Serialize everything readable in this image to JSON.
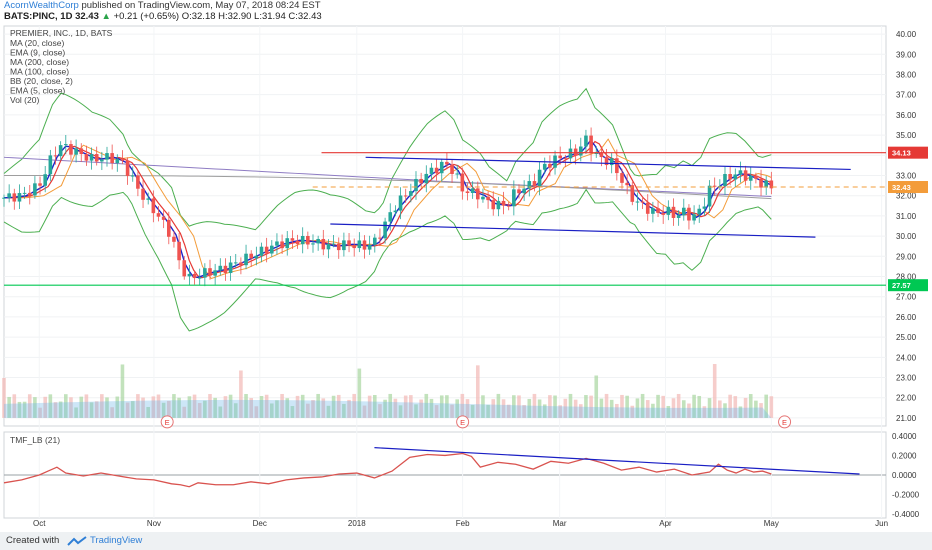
{
  "header": {
    "author": "AcornWealthCorp",
    "published": "published on TradingView.com, May 07, 2018 08:24 EST",
    "symbol": "BATS:PINC, 1D",
    "last": "32.43",
    "change_arrow": "▲",
    "change": "+0.21 (+0.65%)",
    "ohlc": "O:32.18 H:32.90 L:31.94 C:32.43"
  },
  "footer": {
    "created_with": "Created with",
    "brand": "TradingView",
    "logo_icon": "tradingview-logo-icon"
  },
  "colors": {
    "candle_up": "#26a69a",
    "candle_down": "#ef5350",
    "ma20": "#4caf50",
    "ema9": "#e53935",
    "ma200": "#8e7cc3",
    "ma100": "#9e9e9e",
    "bb": "#4caf50",
    "ema5": "#1e22c9",
    "resistance": "#e53935",
    "support": "#00c853",
    "channel": "#1a1fc4",
    "orange_guide": "#f39c3a",
    "tmf": "#d9534f",
    "vol_ma": "#6fb6e8",
    "vol_up": "#a8d5a0",
    "vol_down": "#f2b8b5"
  },
  "chart_data": [
    {
      "type": "candlestick",
      "title": "PREMIER, INC., 1D, BATS",
      "indicators": [
        "MA (20, close)",
        "EMA (9, close)",
        "MA (200, close)",
        "MA (100, close)",
        "BB (20, close, 2)",
        "EMA (5, close)",
        "Vol (20)"
      ],
      "x_ticks": [
        "Oct",
        "Nov",
        "Dec",
        "2018",
        "Feb",
        "Mar",
        "Apr",
        "May",
        "Jun"
      ],
      "y_ticks": [
        "40.00",
        "39.00",
        "38.00",
        "37.00",
        "36.00",
        "35.00",
        "34.00",
        "33.00",
        "32.00",
        "31.00",
        "30.00",
        "29.00",
        "28.00",
        "27.00",
        "26.00",
        "25.00",
        "24.00",
        "23.00",
        "22.00",
        "21.00"
      ],
      "ylim": [
        20.6,
        40.4
      ],
      "price_labels": [
        {
          "value": 34.13,
          "text": "34.13",
          "color": "#e53935"
        },
        {
          "value": 32.43,
          "text": "32.43",
          "color": "#f39c3a"
        },
        {
          "value": 27.57,
          "text": "27.57",
          "color": "#00c853"
        }
      ],
      "horizontal_lines": [
        {
          "name": "resistance",
          "value": 34.13,
          "from": 0.36
        },
        {
          "name": "support",
          "value": 27.57,
          "from": 0.0
        },
        {
          "name": "last-price",
          "value": 32.43,
          "from": 0.35,
          "dashed": true
        }
      ],
      "trendlines": [
        {
          "name": "channel-top",
          "x": [
            0.41,
            0.96
          ],
          "y": [
            33.9,
            33.3
          ]
        },
        {
          "name": "channel-bottom",
          "x": [
            0.37,
            0.92
          ],
          "y": [
            30.6,
            29.95
          ]
        }
      ],
      "close_path": [
        [
          0.0,
          31.9
        ],
        [
          0.02,
          32.0
        ],
        [
          0.04,
          32.5
        ],
        [
          0.055,
          34.0
        ],
        [
          0.065,
          34.5
        ],
        [
          0.08,
          34.2
        ],
        [
          0.1,
          33.8
        ],
        [
          0.12,
          33.9
        ],
        [
          0.135,
          33.6
        ],
        [
          0.15,
          32.5
        ],
        [
          0.16,
          31.8
        ],
        [
          0.175,
          31.0
        ],
        [
          0.19,
          30.0
        ],
        [
          0.2,
          28.5
        ],
        [
          0.21,
          27.9
        ],
        [
          0.23,
          28.2
        ],
        [
          0.25,
          28.4
        ],
        [
          0.27,
          28.8
        ],
        [
          0.29,
          29.2
        ],
        [
          0.31,
          29.6
        ],
        [
          0.33,
          29.8
        ],
        [
          0.35,
          29.7
        ],
        [
          0.37,
          29.5
        ],
        [
          0.39,
          29.6
        ],
        [
          0.41,
          29.5
        ],
        [
          0.42,
          29.7
        ],
        [
          0.43,
          30.4
        ],
        [
          0.44,
          31.3
        ],
        [
          0.46,
          32.3
        ],
        [
          0.48,
          33.1
        ],
        [
          0.5,
          33.6
        ],
        [
          0.51,
          33.2
        ],
        [
          0.52,
          32.3
        ],
        [
          0.54,
          32.0
        ],
        [
          0.55,
          31.6
        ],
        [
          0.57,
          31.5
        ],
        [
          0.58,
          32.2
        ],
        [
          0.6,
          32.6
        ],
        [
          0.61,
          33.4
        ],
        [
          0.63,
          33.9
        ],
        [
          0.65,
          34.2
        ],
        [
          0.66,
          34.8
        ],
        [
          0.67,
          34.0
        ],
        [
          0.69,
          33.6
        ],
        [
          0.7,
          32.8
        ],
        [
          0.71,
          32.0
        ],
        [
          0.72,
          31.6
        ],
        [
          0.74,
          31.1
        ],
        [
          0.75,
          31.3
        ],
        [
          0.76,
          31.0
        ],
        [
          0.77,
          31.2
        ],
        [
          0.78,
          30.9
        ],
        [
          0.79,
          31.3
        ],
        [
          0.8,
          32.3
        ],
        [
          0.81,
          32.6
        ],
        [
          0.82,
          32.9
        ],
        [
          0.83,
          33.1
        ],
        [
          0.84,
          33.0
        ],
        [
          0.85,
          32.8
        ],
        [
          0.86,
          32.6
        ],
        [
          0.87,
          32.43
        ]
      ],
      "events": [
        "E",
        "E",
        "E"
      ]
    },
    {
      "type": "line",
      "title": "TMF_LB (21)",
      "x_ticks": [
        "Oct",
        "Nov",
        "Dec",
        "2018",
        "Feb",
        "Mar",
        "Apr",
        "May",
        "Jun"
      ],
      "y_ticks": [
        "0.4000",
        "0.2000",
        "0.0000",
        "-0.2000",
        "-0.4000"
      ],
      "ylim": [
        -0.44,
        0.44
      ],
      "series": [
        {
          "values": [
            [
              0.0,
              -0.08
            ],
            [
              0.02,
              -0.05
            ],
            [
              0.04,
              0.0
            ],
            [
              0.05,
              0.04
            ],
            [
              0.06,
              0.08
            ],
            [
              0.07,
              0.02
            ],
            [
              0.09,
              -0.01
            ],
            [
              0.11,
              0.02
            ],
            [
              0.13,
              -0.01
            ],
            [
              0.15,
              -0.04
            ],
            [
              0.17,
              -0.05
            ],
            [
              0.19,
              -0.09
            ],
            [
              0.2,
              -0.1
            ],
            [
              0.21,
              -0.12
            ],
            [
              0.22,
              -0.08
            ],
            [
              0.24,
              -0.1
            ],
            [
              0.26,
              -0.1
            ],
            [
              0.28,
              -0.07
            ],
            [
              0.3,
              -0.09
            ],
            [
              0.32,
              -0.05
            ],
            [
              0.34,
              -0.03
            ],
            [
              0.36,
              -0.02
            ],
            [
              0.38,
              0.01
            ],
            [
              0.4,
              0.02
            ],
            [
              0.42,
              -0.03
            ],
            [
              0.44,
              0.04
            ],
            [
              0.46,
              0.18
            ],
            [
              0.48,
              0.21
            ],
            [
              0.5,
              0.2
            ],
            [
              0.52,
              0.22
            ],
            [
              0.53,
              0.19
            ],
            [
              0.54,
              0.08
            ],
            [
              0.56,
              0.13
            ],
            [
              0.58,
              0.11
            ],
            [
              0.6,
              0.06
            ],
            [
              0.62,
              0.14
            ],
            [
              0.64,
              0.12
            ],
            [
              0.66,
              0.17
            ],
            [
              0.68,
              0.12
            ],
            [
              0.7,
              0.05
            ],
            [
              0.72,
              0.08
            ],
            [
              0.74,
              0.03
            ],
            [
              0.76,
              0.06
            ],
            [
              0.78,
              0.0
            ],
            [
              0.8,
              0.03
            ],
            [
              0.81,
              0.11
            ],
            [
              0.82,
              0.05
            ],
            [
              0.83,
              0.02
            ],
            [
              0.84,
              0.06
            ],
            [
              0.85,
              0.03
            ],
            [
              0.86,
              0.04
            ],
            [
              0.87,
              0.01
            ]
          ]
        }
      ],
      "trendline": {
        "x": [
          0.42,
          0.97
        ],
        "y": [
          0.28,
          0.01
        ]
      }
    }
  ]
}
